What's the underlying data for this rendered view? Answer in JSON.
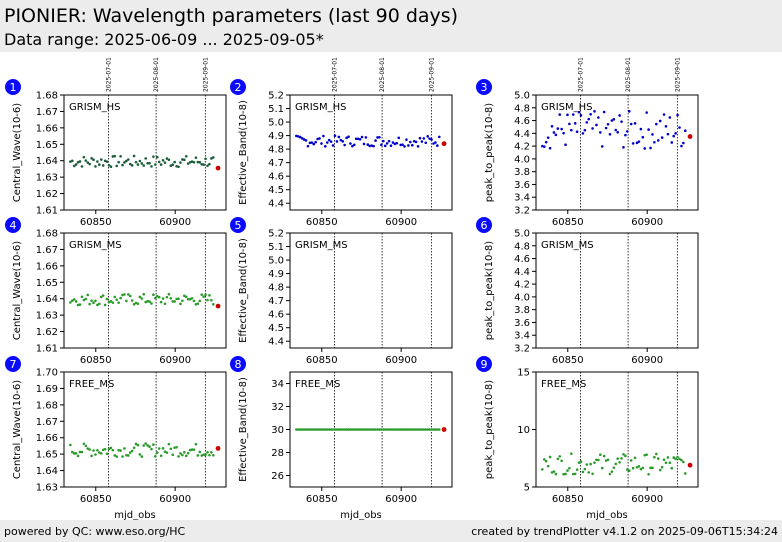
{
  "page": {
    "title": "PIONIER: Wavelength parameters (last 90 days)",
    "subtitle": "Data range: 2025-06-09 ... 2025-09-05*",
    "footer_left": "powered by QC: www.eso.org/HC",
    "footer_right": "created by trendPlotter v4.1.2 on 2025-09-06T15:34:24"
  },
  "chart_data": [
    {
      "panel": "1",
      "type": "scatter",
      "label": "GRISM_HS",
      "ylabel": "Central_Wave(10-6)",
      "xlabel": "",
      "ylim": [
        1.61,
        1.68
      ],
      "yticks": [
        "1.61",
        "1.62",
        "1.63",
        "1.64",
        "1.65",
        "1.66",
        "1.67",
        "1.68"
      ],
      "xlim": [
        60830,
        60932
      ],
      "xticks": [
        60850,
        60900
      ],
      "date_lines": [
        {
          "x": 60858,
          "label": "2025-07-01"
        },
        {
          "x": 60888,
          "label": "2025-08-01"
        },
        {
          "x": 60919,
          "label": "2025-09-01"
        }
      ],
      "color": "#1a5c3a",
      "last_color": "#cc0000",
      "y_center": 1.6395,
      "y_spread": 0.0035,
      "last_value": 1.6355,
      "x_start": 60834,
      "x_end": 60924
    },
    {
      "panel": "2",
      "type": "scatter",
      "label": "GRISM_HS",
      "ylabel": "Effective_Band(10-8)",
      "xlabel": "",
      "ylim": [
        4.35,
        5.2
      ],
      "yticks": [
        "4.4",
        "4.5",
        "4.6",
        "4.7",
        "4.8",
        "4.9",
        "5.0",
        "5.1",
        "5.2"
      ],
      "xlim": [
        60830,
        60932
      ],
      "xticks": [
        60850,
        60900
      ],
      "date_lines": [
        {
          "x": 60858,
          "label": "2025-07-01"
        },
        {
          "x": 60888,
          "label": "2025-08-01"
        },
        {
          "x": 60919,
          "label": "2025-09-01"
        }
      ],
      "color": "#0000cc",
      "last_color": "#cc0000",
      "y_center": 4.86,
      "y_spread": 0.04,
      "last_value": 4.84,
      "x_start": 60834,
      "x_end": 60924
    },
    {
      "panel": "3",
      "type": "scatter",
      "label": "GRISM_HS",
      "ylabel": "peak_to_peak(10-8)",
      "xlabel": "",
      "ylim": [
        3.2,
        5.0
      ],
      "yticks": [
        "3.2",
        "3.4",
        "3.6",
        "3.8",
        "4.0",
        "4.2",
        "4.4",
        "4.6",
        "4.8",
        "5.0"
      ],
      "xlim": [
        60830,
        60932
      ],
      "xticks": [
        60850,
        60900
      ],
      "date_lines": [
        {
          "x": 60858,
          "label": "2025-07-01"
        },
        {
          "x": 60888,
          "label": "2025-08-01"
        },
        {
          "x": 60919,
          "label": "2025-09-01"
        }
      ],
      "color": "#0000cc",
      "last_color": "#cc0000",
      "y_center": 4.45,
      "y_spread": 0.3,
      "last_value": 4.35,
      "x_start": 60834,
      "x_end": 60924
    },
    {
      "panel": "4",
      "type": "scatter",
      "label": "GRISM_MS",
      "ylabel": "Central_Wave(10-6)",
      "xlabel": "",
      "ylim": [
        1.61,
        1.68
      ],
      "yticks": [
        "1.61",
        "1.62",
        "1.63",
        "1.64",
        "1.65",
        "1.66",
        "1.67",
        "1.68"
      ],
      "xlim": [
        60830,
        60932
      ],
      "xticks": [
        60850,
        60900
      ],
      "date_lines": [
        {
          "x": 60858,
          "label": ""
        },
        {
          "x": 60888,
          "label": ""
        },
        {
          "x": 60919,
          "label": ""
        }
      ],
      "color": "#2a9a2a",
      "last_color": "#cc0000",
      "y_center": 1.6395,
      "y_spread": 0.0035,
      "last_value": 1.6355,
      "x_start": 60834,
      "x_end": 60924
    },
    {
      "panel": "5",
      "type": "scatter",
      "label": "GRISM_MS",
      "ylabel": "Effective_Band(10-8)",
      "xlabel": "",
      "ylim": [
        4.35,
        5.2
      ],
      "yticks": [
        "4.4",
        "4.5",
        "4.6",
        "4.7",
        "4.8",
        "4.9",
        "5.0",
        "5.1",
        "5.2"
      ],
      "xlim": [
        60830,
        60932
      ],
      "xticks": [
        60850,
        60900
      ],
      "date_lines": [
        {
          "x": 60858,
          "label": ""
        },
        {
          "x": 60888,
          "label": ""
        },
        {
          "x": 60919,
          "label": ""
        }
      ],
      "color": "#2a9a2a",
      "last_color": "#cc0000",
      "y_center": null,
      "y_spread": 0,
      "last_value": null,
      "x_start": 60834,
      "x_end": 60924
    },
    {
      "panel": "6",
      "type": "scatter",
      "label": "GRISM_MS",
      "ylabel": "peak_to_peak(10-8)",
      "xlabel": "",
      "ylim": [
        3.2,
        5.0
      ],
      "yticks": [
        "3.2",
        "3.4",
        "3.6",
        "3.8",
        "4.0",
        "4.2",
        "4.4",
        "4.6",
        "4.8",
        "5.0"
      ],
      "xlim": [
        60830,
        60932
      ],
      "xticks": [
        60850,
        60900
      ],
      "date_lines": [
        {
          "x": 60858,
          "label": ""
        },
        {
          "x": 60888,
          "label": ""
        },
        {
          "x": 60919,
          "label": ""
        }
      ],
      "color": "#2a9a2a",
      "last_color": "#cc0000",
      "y_center": null,
      "y_spread": 0,
      "last_value": null,
      "x_start": 60834,
      "x_end": 60924
    },
    {
      "panel": "7",
      "type": "scatter",
      "label": "FREE_MS",
      "ylabel": "Central_Wave(10-6)",
      "xlabel": "mjd_obs",
      "ylim": [
        1.63,
        1.7
      ],
      "yticks": [
        "1.63",
        "1.64",
        "1.65",
        "1.66",
        "1.67",
        "1.68",
        "1.69",
        "1.70"
      ],
      "xlim": [
        60830,
        60932
      ],
      "xticks": [
        60850,
        60900
      ],
      "date_lines": [
        {
          "x": 60858,
          "label": ""
        },
        {
          "x": 60888,
          "label": ""
        },
        {
          "x": 60919,
          "label": ""
        }
      ],
      "color": "#2a9a2a",
      "last_color": "#cc0000",
      "y_center": 1.6525,
      "y_spread": 0.004,
      "last_value": 1.6535,
      "x_start": 60834,
      "x_end": 60924
    },
    {
      "panel": "8",
      "type": "scatter",
      "label": "FREE_MS",
      "ylabel": "Effective_Band(10-8)",
      "xlabel": "mjd_obs",
      "ylim": [
        25,
        35
      ],
      "yticks": [
        "26",
        "28",
        "30",
        "32",
        "34"
      ],
      "xlim": [
        60830,
        60932
      ],
      "xticks": [
        60850,
        60900
      ],
      "date_lines": [
        {
          "x": 60858,
          "label": ""
        },
        {
          "x": 60888,
          "label": ""
        },
        {
          "x": 60919,
          "label": ""
        }
      ],
      "color": "#2a9a2a",
      "last_color": "#cc0000",
      "y_center": 30.0,
      "y_spread": 0,
      "last_value": 30.0,
      "x_start": 60834,
      "x_end": 60924
    },
    {
      "panel": "9",
      "type": "scatter",
      "label": "FREE_MS",
      "ylabel": "peak_to_peak(10-8)",
      "xlabel": "mjd_obs",
      "ylim": [
        5,
        15
      ],
      "yticks": [
        "5",
        "10",
        "15"
      ],
      "xlim": [
        60830,
        60932
      ],
      "xticks": [
        60850,
        60900
      ],
      "date_lines": [
        {
          "x": 60858,
          "label": ""
        },
        {
          "x": 60888,
          "label": ""
        },
        {
          "x": 60919,
          "label": ""
        }
      ],
      "color": "#2a9a2a",
      "last_color": "#cc0000",
      "y_center": 7.0,
      "y_spread": 0.9,
      "last_value": 6.9,
      "x_start": 60834,
      "x_end": 60924
    }
  ]
}
